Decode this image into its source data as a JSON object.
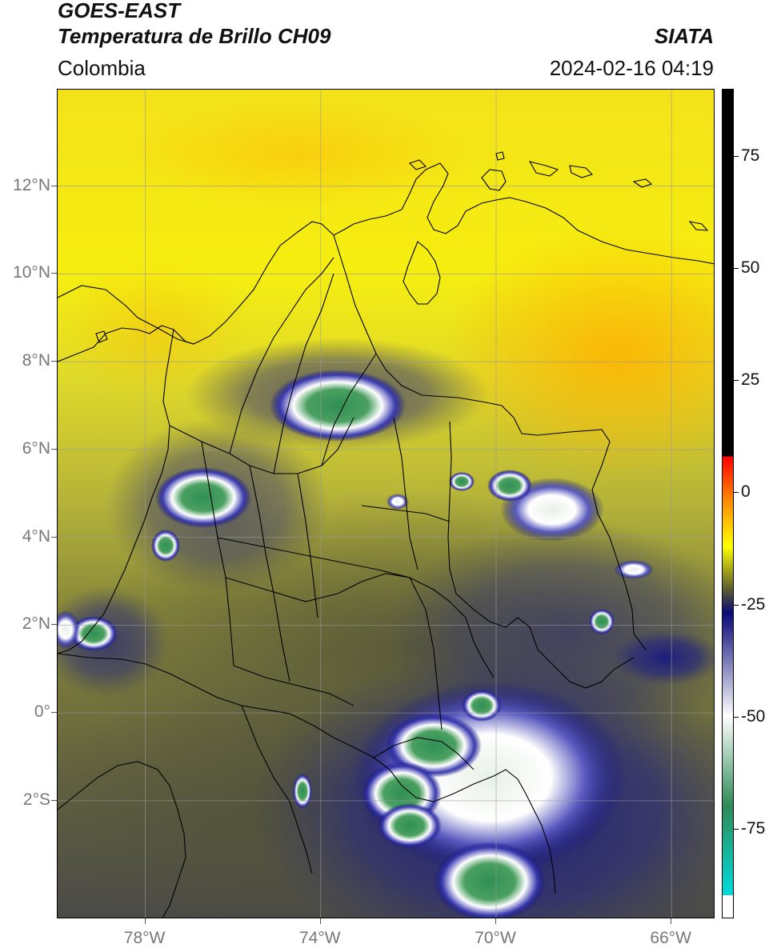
{
  "header": {
    "title_line1": "GOES-EAST",
    "title_line2": "Temperatura de Brillo CH09",
    "org": "SIATA",
    "region": "Colombia",
    "datetime": "2024-02-16 04:19"
  },
  "map": {
    "lon_range": [
      -80,
      -65
    ],
    "lat_range": [
      -4.7,
      14.2
    ],
    "lat_ticks": [
      {
        "value": 12,
        "label": "12°N"
      },
      {
        "value": 10,
        "label": "10°N"
      },
      {
        "value": 8,
        "label": "8°N"
      },
      {
        "value": 6,
        "label": "6°N"
      },
      {
        "value": 4,
        "label": "4°N"
      },
      {
        "value": 2,
        "label": "2°N"
      },
      {
        "value": 0,
        "label": "0°"
      },
      {
        "value": -2,
        "label": "2°S"
      }
    ],
    "lon_ticks": [
      {
        "value": -78,
        "label": "78°W"
      },
      {
        "value": -74,
        "label": "74°W"
      },
      {
        "value": -70,
        "label": "70°W"
      },
      {
        "value": -66,
        "label": "66°W"
      }
    ],
    "grid": true
  },
  "colorbar": {
    "range": [
      -95,
      90
    ],
    "ticks": [
      {
        "value": 75,
        "label": "75"
      },
      {
        "value": 50,
        "label": "50"
      },
      {
        "value": 25,
        "label": "25"
      },
      {
        "value": 0,
        "label": "0"
      },
      {
        "value": -25,
        "label": "-25"
      },
      {
        "value": -50,
        "label": "-50"
      },
      {
        "value": -75,
        "label": "-75"
      }
    ],
    "colors": {
      "cold_end": "#ffffff",
      "cyan": "#00dcdc",
      "green": "#2e8b57",
      "white": "#ffffff",
      "navy": "#0a0a7a",
      "olive": "#565633",
      "yellow": "#ffff00",
      "orange": "#ff8c00",
      "red": "#ff0000",
      "warm_end": "#000000"
    }
  }
}
